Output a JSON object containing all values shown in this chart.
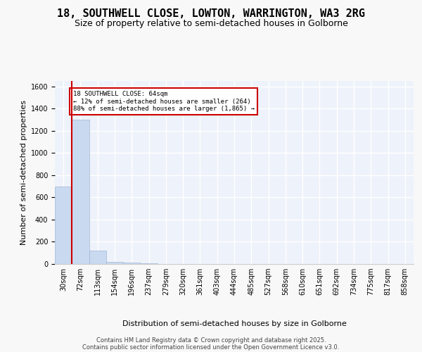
{
  "title": "18, SOUTHWELL CLOSE, LOWTON, WARRINGTON, WA3 2RG",
  "subtitle": "Size of property relative to semi-detached houses in Golborne",
  "xlabel_dist": "Distribution of semi-detached houses by size in Golborne",
  "ylabel": "Number of semi-detached properties",
  "bar_color": "#c9d9ef",
  "bar_edgecolor": "#a0b8d8",
  "bg_color": "#eef2fa",
  "grid_color": "#ffffff",
  "bin_labels": [
    "30sqm",
    "72sqm",
    "113sqm",
    "154sqm",
    "196sqm",
    "237sqm",
    "279sqm",
    "320sqm",
    "361sqm",
    "403sqm",
    "444sqm",
    "485sqm",
    "527sqm",
    "568sqm",
    "610sqm",
    "651sqm",
    "692sqm",
    "734sqm",
    "775sqm",
    "817sqm",
    "858sqm"
  ],
  "bar_heights": [
    700,
    1300,
    120,
    20,
    15,
    5,
    3,
    2,
    2,
    1,
    1,
    1,
    1,
    1,
    0,
    0,
    0,
    0,
    0,
    0,
    0
  ],
  "red_line_x": 0.5,
  "annotation_text": "18 SOUTHWELL CLOSE: 64sqm\n← 12% of semi-detached houses are smaller (264)\n88% of semi-detached houses are larger (1,865) →",
  "red_line_color": "#cc0000",
  "ylim": [
    0,
    1650
  ],
  "yticks": [
    0,
    200,
    400,
    600,
    800,
    1000,
    1200,
    1400,
    1600
  ],
  "footer_line1": "Contains HM Land Registry data © Crown copyright and database right 2025.",
  "footer_line2": "Contains public sector information licensed under the Open Government Licence v3.0.",
  "title_fontsize": 11,
  "subtitle_fontsize": 9,
  "axis_fontsize": 8,
  "tick_fontsize": 7,
  "footer_fontsize": 6
}
